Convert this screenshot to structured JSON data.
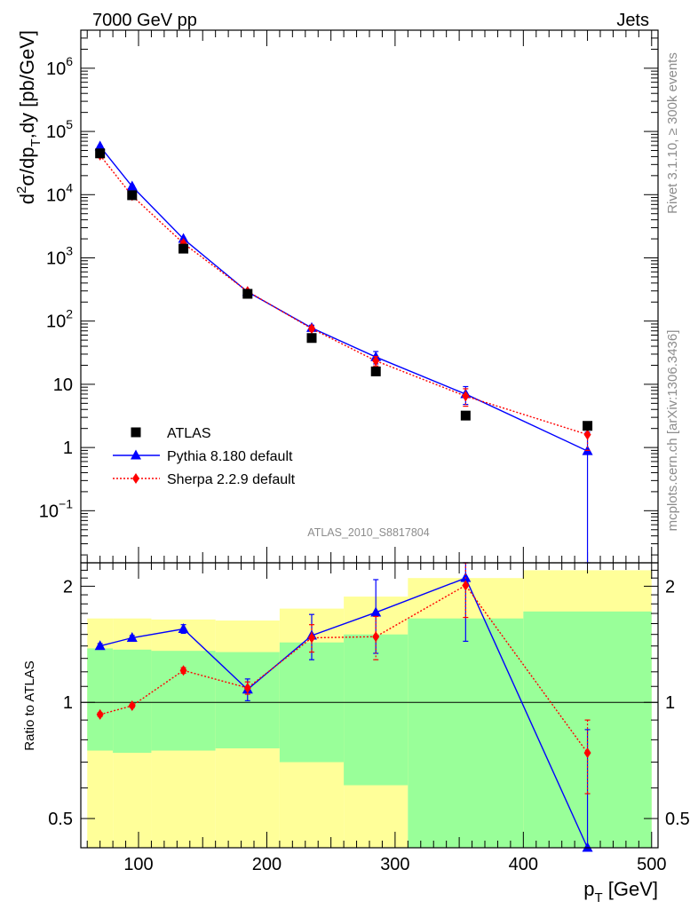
{
  "header": {
    "left": "7000 GeV pp",
    "right": "Jets"
  },
  "side_labels": {
    "rivet": "Rivet 3.1.10, ≥ 300k events",
    "mcplots": "mcplots.cern.ch [arXiv:1306.3436]"
  },
  "analysis_id": "ATLAS_2010_S8817804",
  "chart_data": [
    {
      "type": "scatter",
      "panel": "main",
      "title": "",
      "ylabel_parts": {
        "a": "d",
        "sup": "2",
        "b": "σ/dp",
        "sub": "T",
        "c": ",dy [pb/GeV]"
      },
      "xlim": [
        55,
        505
      ],
      "ylim": [
        0.015,
        4000000
      ],
      "yscale": "log",
      "y_ticks": [
        {
          "value": 0.1,
          "base": "10",
          "exp": "−1"
        },
        {
          "value": 1,
          "label": "1"
        },
        {
          "value": 10,
          "label": "10"
        },
        {
          "value": 100,
          "base": "10",
          "exp": "2"
        },
        {
          "value": 1000,
          "base": "10",
          "exp": "3"
        },
        {
          "value": 10000,
          "base": "10",
          "exp": "4"
        },
        {
          "value": 100000,
          "base": "10",
          "exp": "5"
        },
        {
          "value": 1000000,
          "base": "10",
          "exp": "6"
        }
      ],
      "series": [
        {
          "name": "ATLAS",
          "color": "#000000",
          "marker": "square",
          "x": [
            70,
            95,
            135,
            185,
            235,
            285,
            355,
            450
          ],
          "y": [
            45000,
            9800,
            1400,
            270,
            54,
            16,
            3.2,
            2.2
          ]
        },
        {
          "name": "Pythia 8.180 default",
          "color": "#0000ff",
          "marker": "triangle",
          "line": "solid",
          "x": [
            70,
            95,
            135,
            185,
            235,
            285,
            355,
            450
          ],
          "y": [
            58000,
            13500,
            2000,
            290,
            78,
            27,
            7,
            0.88
          ],
          "y_err": [
            1500,
            400,
            60,
            8,
            8,
            6,
            2.2,
            0.87
          ]
        },
        {
          "name": "Sherpa 2.2.9 default",
          "color": "#ff0000",
          "marker": "diamond",
          "line": "dotted",
          "x": [
            70,
            95,
            135,
            185,
            235,
            285,
            355,
            450
          ],
          "y": [
            42000,
            9600,
            1700,
            295,
            76,
            23.5,
            6.5,
            1.6
          ],
          "y_err": [
            1000,
            300,
            50,
            8,
            6,
            4,
            2,
            0.7
          ]
        }
      ],
      "legend_position": "bottom-left"
    },
    {
      "type": "scatter",
      "panel": "ratio",
      "ylabel": "Ratio to ATLAS",
      "xlabel_parts": {
        "a": "p",
        "sub": "T",
        "b": " [GeV]"
      },
      "xlim": [
        55,
        505
      ],
      "ylim": [
        0.42,
        2.3
      ],
      "yscale": "log",
      "y_ticks": [
        {
          "value": 0.5,
          "label": "0.5"
        },
        {
          "value": 1,
          "label": "1"
        },
        {
          "value": 2,
          "label": "2"
        }
      ],
      "x_ticks": [
        100,
        200,
        300,
        400,
        500
      ],
      "bands": [
        {
          "x0": 60,
          "x1": 80,
          "green": [
            0.75,
            1.38
          ],
          "yellow": [
            0.4,
            1.65
          ]
        },
        {
          "x0": 80,
          "x1": 110,
          "green": [
            0.74,
            1.37
          ],
          "yellow": [
            0.4,
            1.65
          ]
        },
        {
          "x0": 110,
          "x1": 160,
          "green": [
            0.75,
            1.36
          ],
          "yellow": [
            0.4,
            1.64
          ]
        },
        {
          "x0": 160,
          "x1": 210,
          "green": [
            0.76,
            1.35
          ],
          "yellow": [
            0.38,
            1.63
          ]
        },
        {
          "x0": 210,
          "x1": 260,
          "green": [
            0.7,
            1.43
          ],
          "yellow": [
            0.4,
            1.75
          ]
        },
        {
          "x0": 260,
          "x1": 310,
          "green": [
            0.61,
            1.5
          ],
          "yellow": [
            0.4,
            1.88
          ]
        },
        {
          "x0": 310,
          "x1": 400,
          "green": [
            0.38,
            1.65
          ],
          "yellow": [
            0.4,
            2.1
          ]
        },
        {
          "x0": 400,
          "x1": 500,
          "green": [
            0.38,
            1.72
          ],
          "yellow": [
            0.4,
            2.2
          ]
        }
      ],
      "series": [
        {
          "name": "Pythia 8.180 default",
          "color": "#0000ff",
          "marker": "triangle",
          "line": "solid",
          "x": [
            70,
            95,
            135,
            185,
            235,
            285,
            355,
            450
          ],
          "y": [
            1.4,
            1.47,
            1.55,
            1.08,
            1.49,
            1.71,
            2.1,
            0.4
          ],
          "y_err": [
            0.02,
            0.02,
            0.04,
            0.07,
            0.2,
            0.37,
            0.66,
            0.45
          ]
        },
        {
          "name": "Sherpa 2.2.9 default",
          "color": "#ff0000",
          "marker": "diamond",
          "line": "dotted",
          "x": [
            70,
            95,
            135,
            185,
            235,
            285,
            355,
            450
          ],
          "y": [
            0.93,
            0.98,
            1.21,
            1.09,
            1.47,
            1.48,
            2.01,
            0.74
          ],
          "y_err": [
            0.01,
            0.01,
            0.02,
            0.04,
            0.12,
            0.19,
            0.35,
            0.16
          ]
        }
      ]
    }
  ]
}
